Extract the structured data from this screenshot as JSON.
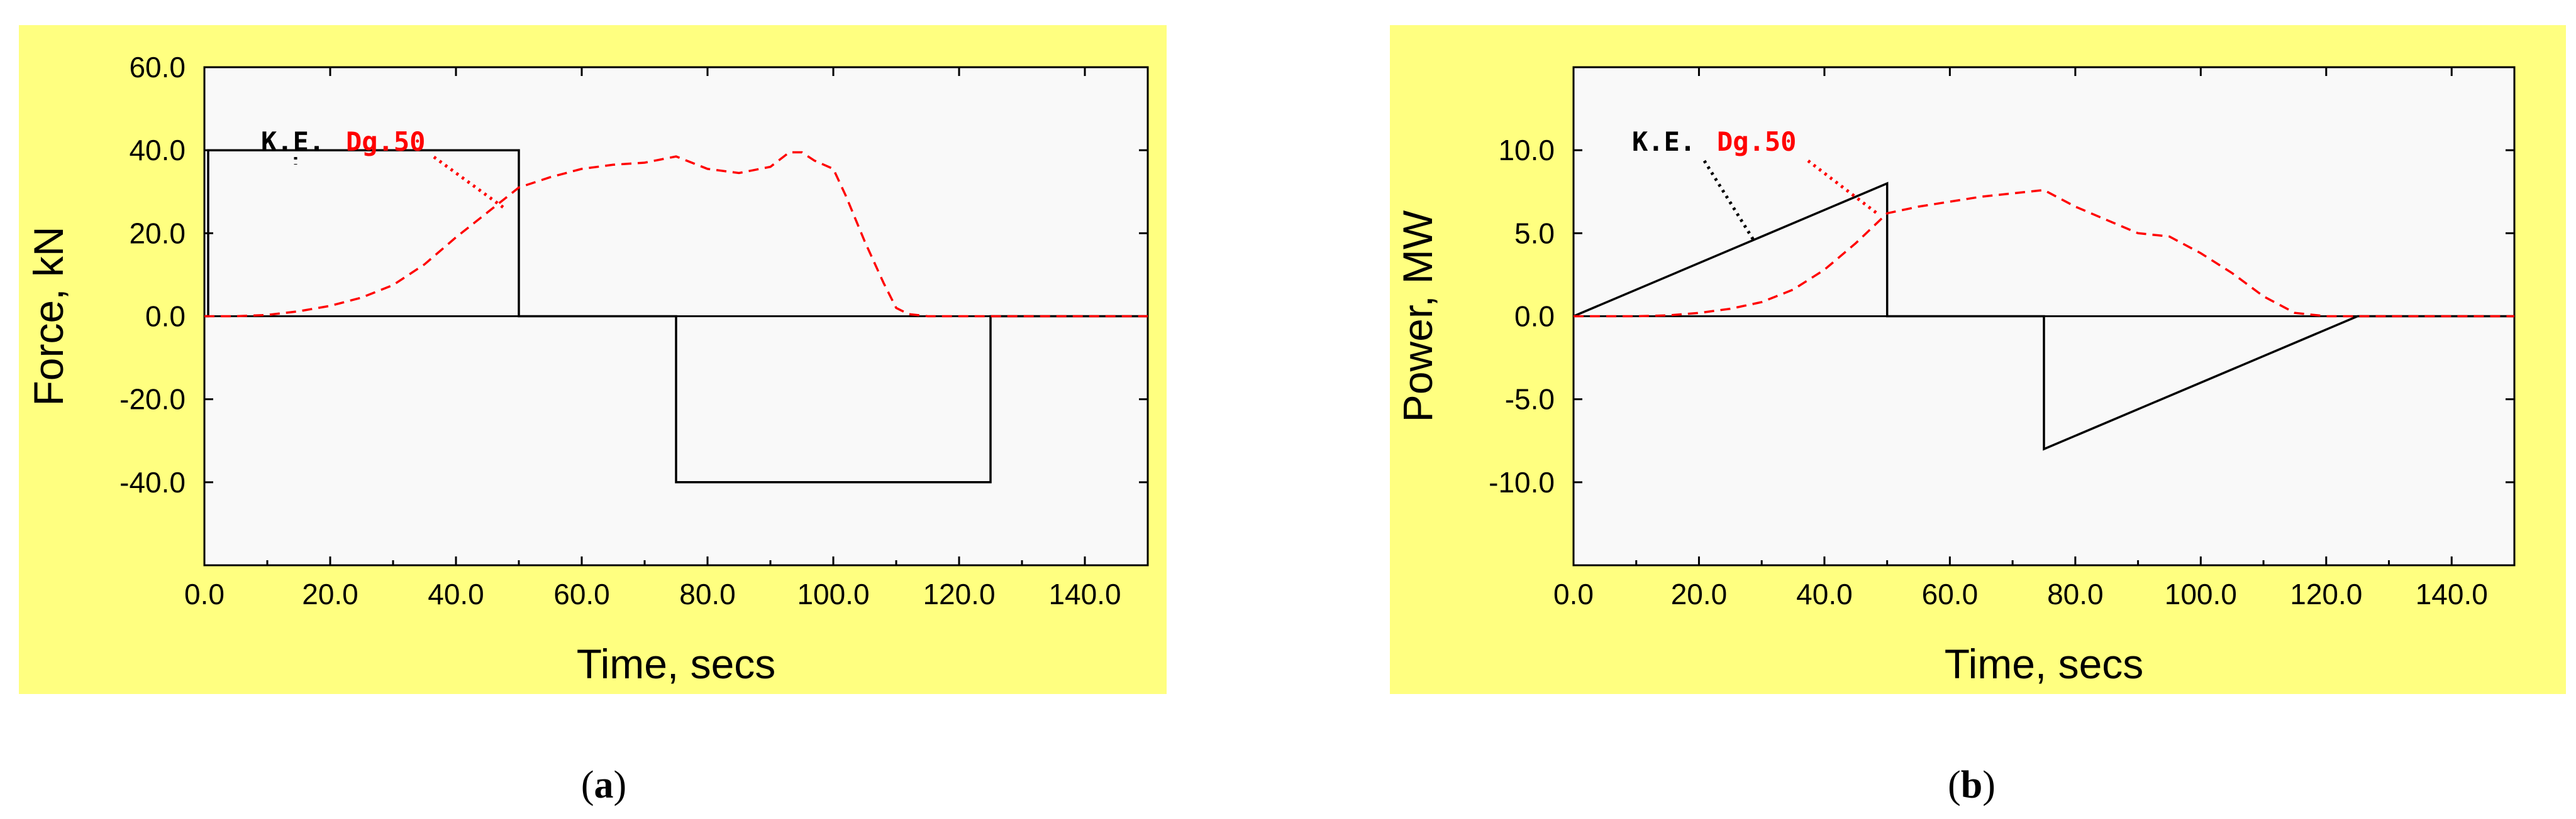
{
  "colors": {
    "panel_background": "#ffff80",
    "plot_background": "#f9f9f9",
    "ke_series": "#000000",
    "dg_series": "#ff0000"
  },
  "chart_data": [
    {
      "type": "line",
      "caption_letter": "a",
      "xlabel": "Time, secs",
      "ylabel": "Force, kN",
      "xlim": [
        0,
        150
      ],
      "ylim": [
        -60,
        60
      ],
      "xticks": [
        "0.0",
        "20.0",
        "40.0",
        "60.0",
        "80.0",
        "100.0",
        "120.0",
        "140.0"
      ],
      "yticks": [
        "60.0",
        "40.0",
        "20.0",
        "0.0",
        "-20.0",
        "-40.0"
      ],
      "ytick_values": [
        60,
        40,
        20,
        0,
        -20,
        -40
      ],
      "grid": false,
      "legend_position": "top-left",
      "series": [
        {
          "name": "K.E.",
          "style": "solid",
          "x": [
            0,
            0.6,
            0.6,
            50,
            50,
            75,
            75,
            125,
            125,
            150
          ],
          "y": [
            0,
            0,
            40,
            40,
            0,
            0,
            -40,
            -40,
            0,
            0
          ]
        },
        {
          "name": "Dg.50",
          "style": "dashed",
          "x": [
            0,
            5,
            10,
            15,
            20,
            25,
            30,
            35,
            40,
            45,
            50,
            55,
            60,
            65,
            70,
            75,
            80,
            85,
            90,
            93,
            95,
            97,
            100,
            102,
            105,
            108,
            110,
            112,
            115,
            120,
            130,
            140,
            150
          ],
          "y": [
            0,
            0,
            0.3,
            1.2,
            2.5,
            4.5,
            7.5,
            12.5,
            19,
            25,
            31,
            33.5,
            35.5,
            36.5,
            37,
            38.5,
            35.5,
            34.5,
            36,
            39.5,
            39.5,
            37.5,
            35.5,
            29,
            18,
            8,
            2,
            0.5,
            0,
            0,
            0,
            0,
            0
          ]
        }
      ]
    },
    {
      "type": "line",
      "caption_letter": "b",
      "xlabel": "Time, secs",
      "ylabel": "Power, MW",
      "xlim": [
        0,
        150
      ],
      "ylim": [
        -15,
        15
      ],
      "xticks": [
        "0.0",
        "20.0",
        "40.0",
        "60.0",
        "80.0",
        "100.0",
        "120.0",
        "140.0"
      ],
      "yticks": [
        "10.0",
        "5.0",
        "0.0",
        "-5.0",
        "-10.0"
      ],
      "ytick_values": [
        10,
        5,
        0,
        -5,
        -10
      ],
      "grid": false,
      "legend_position": "top-left",
      "series": [
        {
          "name": "K.E.",
          "style": "solid",
          "x": [
            0,
            50,
            50,
            75,
            75,
            125,
            150
          ],
          "y": [
            0,
            8,
            0,
            0,
            -8,
            0,
            0
          ]
        },
        {
          "name": "Dg.50",
          "style": "dashed",
          "x": [
            0,
            5,
            10,
            15,
            20,
            25,
            30,
            35,
            40,
            45,
            50,
            55,
            60,
            65,
            70,
            75,
            80,
            85,
            90,
            95,
            100,
            105,
            110,
            115,
            120,
            125,
            130,
            140,
            150
          ],
          "y": [
            0,
            0,
            0,
            0.05,
            0.2,
            0.45,
            0.85,
            1.6,
            2.8,
            4.4,
            6.2,
            6.6,
            6.9,
            7.2,
            7.4,
            7.6,
            6.6,
            5.8,
            5.0,
            4.8,
            3.8,
            2.6,
            1.2,
            0.2,
            0,
            0,
            0,
            0,
            0
          ]
        }
      ]
    }
  ],
  "legend": {
    "ke_label": "K.E.",
    "dg_label": "Dg.50"
  }
}
